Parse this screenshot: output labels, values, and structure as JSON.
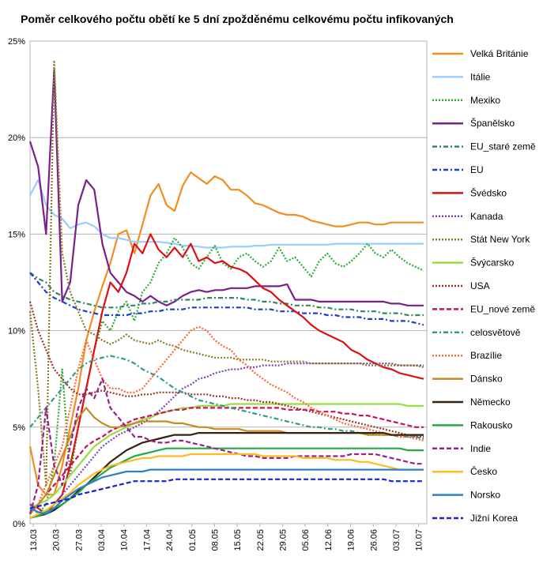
{
  "chart_data": {
    "type": "line",
    "title": "Poměr celkového počtu obětí ke 5 dní zpožděnému celkovému počtu infikovaných",
    "xlabel": "",
    "ylabel": "",
    "ylim": [
      0,
      25
    ],
    "yticks": [
      "0%",
      "5%",
      "10%",
      "15%",
      "20%",
      "25%"
    ],
    "x_tick_labels": [
      "13.03",
      "20.03",
      "27.03",
      "03.04",
      "10.04",
      "17.04",
      "24.04",
      "01.05",
      "08.05",
      "15.05",
      "22.05",
      "29.05",
      "05.06",
      "12.06",
      "19.06",
      "26.06",
      "03.07",
      "10.07"
    ],
    "grid": true,
    "legend_position": "right",
    "series": [
      {
        "name": "Velká Británie",
        "color": "#f58c1e",
        "dash": "solid",
        "values": [
          4,
          2,
          1.5,
          1.5,
          3,
          5,
          7,
          9.5,
          11,
          12.3,
          13.5,
          15,
          15.2,
          14,
          15.5,
          17,
          17.6,
          16.5,
          16.2,
          17.5,
          18.2,
          17.9,
          17.6,
          18,
          17.8,
          17.3,
          17.3,
          17,
          16.6,
          16.5,
          16.3,
          16.1,
          16,
          16,
          15.9,
          15.7,
          15.6,
          15.5,
          15.4,
          15.4,
          15.5,
          15.6,
          15.6,
          15.5,
          15.5,
          15.6,
          15.6,
          15.6,
          15.6,
          15.6
        ]
      },
      {
        "name": "Itálie",
        "color": "#99ccff",
        "dash": "solid",
        "values": [
          17,
          17.8,
          16.5,
          16,
          15.8,
          15.3,
          15.5,
          15.6,
          15.4,
          15,
          14.8,
          14.8,
          14.7,
          14.6,
          14.6,
          14.6,
          14.6,
          14.55,
          14.5,
          14.4,
          14.4,
          14.35,
          14.3,
          14.3,
          14.3,
          14.35,
          14.35,
          14.35,
          14.4,
          14.4,
          14.45,
          14.45,
          14.45,
          14.45,
          14.45,
          14.45,
          14.45,
          14.45,
          14.5,
          14.5,
          14.5,
          14.5,
          14.5,
          14.5,
          14.5,
          14.5,
          14.5,
          14.5,
          14.5,
          14.5
        ]
      },
      {
        "name": "Mexiko",
        "color": "#33aa33",
        "dash": "dot",
        "values": [
          1,
          0.5,
          1,
          3,
          8,
          2.5,
          5,
          7,
          9,
          10.5,
          10,
          11,
          11.5,
          10.5,
          12,
          12.5,
          13.5,
          14,
          14.8,
          14.3,
          13.5,
          13.2,
          13.8,
          14.4,
          13.5,
          13.2,
          13.8,
          14,
          13.6,
          13.3,
          13.6,
          14.3,
          13.6,
          13.8,
          13.3,
          12.8,
          13.6,
          14,
          13.5,
          13.3,
          13.6,
          14,
          14.5,
          14,
          13.8,
          14.2,
          13.8,
          13.5,
          13.3,
          13.1
        ]
      },
      {
        "name": "Španělsko",
        "color": "#7a1f8c",
        "dash": "solid",
        "values": [
          19.8,
          18.5,
          15,
          23.5,
          11.5,
          12.5,
          16.5,
          17.8,
          17.3,
          14.5,
          13,
          12.5,
          12,
          11.8,
          11.5,
          11.8,
          11.5,
          11.3,
          11.5,
          11.8,
          12,
          12.1,
          12,
          12.1,
          12.1,
          12.2,
          12.2,
          12.2,
          12.3,
          12.3,
          12.3,
          12.3,
          12.4,
          11.6,
          11.6,
          11.6,
          11.5,
          11.5,
          11.5,
          11.5,
          11.5,
          11.5,
          11.5,
          11.5,
          11.5,
          11.4,
          11.4,
          11.3,
          11.3,
          11.3
        ]
      },
      {
        "name": "EU_staré země",
        "color": "#2e8a5e",
        "dash": "dashdot",
        "values": [
          13,
          12.7,
          12.5,
          12,
          11.8,
          11.6,
          11.5,
          11.4,
          11.3,
          11.2,
          11.2,
          11.2,
          11.3,
          11.3,
          11.4,
          11.4,
          11.5,
          11.5,
          11.6,
          11.6,
          11.6,
          11.6,
          11.7,
          11.7,
          11.7,
          11.7,
          11.7,
          11.6,
          11.6,
          11.5,
          11.5,
          11.4,
          11.4,
          11.3,
          11.3,
          11.3,
          11.2,
          11.2,
          11.1,
          11.1,
          11.1,
          11,
          11,
          11,
          10.9,
          10.9,
          10.9,
          10.8,
          10.8,
          10.8
        ]
      },
      {
        "name": "EU",
        "color": "#1a3fcc",
        "dash": "dashdot",
        "values": [
          13,
          12.5,
          12,
          11.7,
          11.5,
          11.3,
          11.1,
          11,
          10.9,
          10.8,
          10.8,
          10.8,
          10.8,
          10.9,
          10.9,
          11,
          11,
          11.1,
          11.1,
          11.1,
          11.2,
          11.2,
          11.2,
          11.2,
          11.2,
          11.2,
          11.2,
          11.2,
          11.1,
          11.1,
          11.1,
          11,
          11,
          11,
          10.9,
          10.9,
          10.9,
          10.8,
          10.8,
          10.7,
          10.7,
          10.7,
          10.6,
          10.6,
          10.6,
          10.5,
          10.5,
          10.5,
          10.4,
          10.3
        ]
      },
      {
        "name": "Švédsko",
        "color": "#dd1111",
        "dash": "solid",
        "values": [
          1,
          0.8,
          0.5,
          1,
          1.5,
          3,
          5,
          7,
          9,
          11,
          12.5,
          12,
          13,
          14.5,
          14,
          15,
          14.2,
          13.8,
          14.3,
          13.8,
          14.5,
          13.6,
          13.8,
          13.5,
          13.6,
          13.3,
          13.2,
          13,
          12.6,
          12.2,
          12,
          11.6,
          11.3,
          11,
          10.7,
          10.3,
          10,
          9.8,
          9.6,
          9.4,
          9,
          8.8,
          8.5,
          8.3,
          8.1,
          8,
          7.8,
          7.7,
          7.6,
          7.5
        ]
      },
      {
        "name": "Kanada",
        "color": "#7a44b2",
        "dash": "dot",
        "values": [
          1,
          0.8,
          0.5,
          1,
          1.5,
          2,
          2.5,
          3,
          3.5,
          4,
          4.3,
          4.6,
          4.8,
          5,
          5.2,
          5.5,
          5.8,
          6.2,
          6.6,
          7,
          7.2,
          7.5,
          7.6,
          7.8,
          7.9,
          8,
          8,
          8.1,
          8.1,
          8.2,
          8.2,
          8.2,
          8.3,
          8.3,
          8.3,
          8.3,
          8.3,
          8.3,
          8.3,
          8.3,
          8.3,
          8.3,
          8.3,
          8.3,
          8.3,
          8.3,
          8.2,
          8.2,
          8.2,
          8.2
        ]
      },
      {
        "name": "Stát New York",
        "color": "#8a7a22",
        "dash": "dot",
        "values": [
          11,
          7,
          2,
          24,
          14,
          12,
          11,
          10,
          9.8,
          9.5,
          9.3,
          9.5,
          9.8,
          9.5,
          9.4,
          9.3,
          9.5,
          9.3,
          9.2,
          9,
          8.9,
          8.8,
          8.7,
          8.6,
          8.6,
          8.6,
          8.5,
          8.5,
          8.5,
          8.5,
          8.4,
          8.4,
          8.4,
          8.4,
          8.4,
          8.3,
          8.3,
          8.3,
          8.3,
          8.3,
          8.3,
          8.3,
          8.2,
          8.2,
          8.2,
          8.2,
          8.2,
          8.2,
          8.2,
          8.1
        ]
      },
      {
        "name": "Švýcarsko",
        "color": "#99dd44",
        "dash": "solid",
        "values": [
          0.8,
          1,
          1.2,
          1.5,
          2,
          2.5,
          3,
          3.5,
          4,
          4.3,
          4.6,
          4.8,
          5,
          5.2,
          5.4,
          5.5,
          5.7,
          5.8,
          5.9,
          6,
          6,
          6.1,
          6.1,
          6.1,
          6.1,
          6.2,
          6.2,
          6.2,
          6.2,
          6.2,
          6.2,
          6.2,
          6.2,
          6.2,
          6.2,
          6.2,
          6.2,
          6.2,
          6.2,
          6.2,
          6.2,
          6.2,
          6.2,
          6.2,
          6.2,
          6.2,
          6.2,
          6.1,
          6.1,
          6.1
        ]
      },
      {
        "name": "USA",
        "color": "#993322",
        "dash": "dot",
        "values": [
          11.5,
          10,
          9,
          8,
          7.5,
          7,
          6.7,
          6.7,
          6.8,
          6.9,
          6.8,
          6.7,
          6.6,
          6.6,
          6.7,
          6.7,
          6.8,
          6.8,
          6.8,
          6.8,
          6.7,
          6.7,
          6.7,
          6.6,
          6.6,
          6.5,
          6.5,
          6.4,
          6.4,
          6.3,
          6.3,
          6.2,
          6.1,
          6,
          5.9,
          5.8,
          5.7,
          5.6,
          5.5,
          5.4,
          5.3,
          5.2,
          5.1,
          5,
          4.9,
          4.8,
          4.7,
          4.6,
          4.5,
          4.5
        ]
      },
      {
        "name": "EU_nové země",
        "color": "#cc1155",
        "dash": "dash",
        "values": [
          0.5,
          1,
          1.5,
          2,
          2.5,
          3,
          3.5,
          4,
          4.3,
          4.5,
          4.8,
          5,
          5.2,
          5.4,
          5.5,
          5.6,
          5.7,
          5.8,
          5.9,
          5.9,
          6,
          6,
          6,
          6,
          6,
          6,
          6,
          6,
          6,
          6,
          6,
          6,
          5.9,
          5.9,
          5.9,
          5.9,
          5.8,
          5.8,
          5.8,
          5.7,
          5.7,
          5.6,
          5.6,
          5.5,
          5.4,
          5.3,
          5.2,
          5.1,
          5,
          5
        ]
      },
      {
        "name": "celosvětově",
        "color": "#339988",
        "dash": "dashdot",
        "values": [
          5,
          5.5,
          6,
          6.5,
          7,
          7.5,
          8,
          8.3,
          8.5,
          8.6,
          8.7,
          8.6,
          8.5,
          8.3,
          8,
          7.8,
          7.6,
          7.3,
          7,
          6.8,
          6.6,
          6.4,
          6.3,
          6.2,
          6.1,
          6,
          5.9,
          5.8,
          5.7,
          5.6,
          5.5,
          5.4,
          5.3,
          5.2,
          5.1,
          5,
          5,
          4.9,
          4.9,
          4.8,
          4.8,
          4.7,
          4.7,
          4.6,
          4.6,
          4.6,
          4.5,
          4.5,
          4.5,
          4.4
        ]
      },
      {
        "name": "Brazílie",
        "color": "#ff6633",
        "dash": "dot",
        "values": [
          0.5,
          1,
          2,
          3,
          4,
          6,
          8,
          9.5,
          8.5,
          7.5,
          7,
          7,
          6.8,
          6.8,
          7,
          7.5,
          8,
          8.5,
          9,
          9.5,
          10,
          10.2,
          10,
          9.5,
          9.2,
          9,
          8.5,
          8.2,
          7.8,
          7.5,
          7.2,
          7,
          6.8,
          6.5,
          6.3,
          6,
          5.8,
          5.6,
          5.4,
          5.2,
          5.1,
          5,
          4.9,
          4.8,
          4.7,
          4.6,
          4.5,
          4.5,
          4.4,
          4.3
        ]
      },
      {
        "name": "Dánsko",
        "color": "#c78a22",
        "dash": "solid",
        "values": [
          0.5,
          1,
          1.5,
          2.5,
          3.5,
          4.5,
          5.5,
          6,
          5.5,
          5.2,
          5,
          5,
          5.1,
          5.2,
          5.3,
          5.3,
          5.3,
          5.3,
          5.2,
          5.2,
          5.1,
          5,
          5,
          4.9,
          4.9,
          4.9,
          4.9,
          4.8,
          4.8,
          4.8,
          4.8,
          4.8,
          4.7,
          4.7,
          4.7,
          4.7,
          4.7,
          4.7,
          4.7,
          4.7,
          4.7,
          4.7,
          4.6,
          4.6,
          4.6,
          4.6,
          4.6,
          4.6,
          4.6,
          4.6
        ]
      },
      {
        "name": "Německo",
        "color": "#332211",
        "dash": "solid",
        "values": [
          0.3,
          0.4,
          0.5,
          0.7,
          1,
          1.3,
          1.7,
          2,
          2.4,
          2.8,
          3.2,
          3.5,
          3.8,
          4,
          4.2,
          4.3,
          4.4,
          4.5,
          4.6,
          4.6,
          4.6,
          4.7,
          4.7,
          4.7,
          4.7,
          4.7,
          4.7,
          4.7,
          4.7,
          4.7,
          4.7,
          4.7,
          4.7,
          4.7,
          4.7,
          4.7,
          4.7,
          4.7,
          4.7,
          4.7,
          4.7,
          4.7,
          4.7,
          4.7,
          4.7,
          4.6,
          4.6,
          4.6,
          4.6,
          4.6
        ]
      },
      {
        "name": "Rakousko",
        "color": "#22aa44",
        "dash": "solid",
        "values": [
          0.3,
          0.4,
          0.6,
          0.8,
          1,
          1.3,
          1.6,
          2,
          2.3,
          2.6,
          2.9,
          3.1,
          3.3,
          3.5,
          3.6,
          3.7,
          3.8,
          3.9,
          3.9,
          3.9,
          3.9,
          3.9,
          3.9,
          3.9,
          3.9,
          3.9,
          3.9,
          3.9,
          3.9,
          3.9,
          3.9,
          3.9,
          3.9,
          3.9,
          3.9,
          3.9,
          3.9,
          3.9,
          3.9,
          3.9,
          3.9,
          3.9,
          3.9,
          3.9,
          3.9,
          3.9,
          3.9,
          3.8,
          3.8,
          3.8
        ]
      },
      {
        "name": "Indie",
        "color": "#992288",
        "dash": "dash",
        "values": [
          0.5,
          2,
          6,
          3,
          2,
          4,
          6,
          7,
          6.5,
          7.5,
          6,
          5.5,
          5,
          4.5,
          4.5,
          4.3,
          4.2,
          4.2,
          4.3,
          4.3,
          4.2,
          4.1,
          4,
          3.9,
          3.8,
          3.7,
          3.6,
          3.5,
          3.5,
          3.4,
          3.4,
          3.4,
          3.4,
          3.5,
          3.5,
          3.5,
          3.5,
          3.5,
          3.5,
          3.5,
          3.6,
          3.6,
          3.6,
          3.6,
          3.5,
          3.4,
          3.3,
          3.2,
          3.1,
          3.1
        ]
      },
      {
        "name": "Česko",
        "color": "#ffbb22",
        "dash": "solid",
        "values": [
          0.3,
          0.5,
          0.7,
          1,
          1.3,
          1.6,
          2,
          2.3,
          2.6,
          2.8,
          3,
          3.1,
          3.2,
          3.3,
          3.4,
          3.4,
          3.5,
          3.5,
          3.5,
          3.5,
          3.6,
          3.6,
          3.6,
          3.6,
          3.6,
          3.6,
          3.6,
          3.6,
          3.6,
          3.5,
          3.5,
          3.5,
          3.5,
          3.5,
          3.4,
          3.4,
          3.4,
          3.4,
          3.3,
          3.3,
          3.3,
          3.2,
          3.2,
          3.1,
          3,
          2.9,
          2.8,
          2.8,
          2.8,
          2.8
        ]
      },
      {
        "name": "Norsko",
        "color": "#2b7fcc",
        "dash": "solid",
        "values": [
          0.8,
          0.6,
          0.5,
          0.8,
          1.2,
          1.5,
          1.8,
          2,
          2.2,
          2.4,
          2.5,
          2.6,
          2.7,
          2.7,
          2.7,
          2.8,
          2.8,
          2.8,
          2.8,
          2.8,
          2.8,
          2.8,
          2.8,
          2.8,
          2.8,
          2.8,
          2.8,
          2.8,
          2.8,
          2.8,
          2.8,
          2.8,
          2.8,
          2.8,
          2.8,
          2.8,
          2.8,
          2.8,
          2.8,
          2.8,
          2.8,
          2.8,
          2.8,
          2.8,
          2.8,
          2.8,
          2.8,
          2.8,
          2.8,
          2.8
        ]
      },
      {
        "name": "Jižní Korea",
        "color": "#1a22cc",
        "dash": "dash",
        "values": [
          0.8,
          0.9,
          1,
          1.1,
          1.2,
          1.3,
          1.5,
          1.6,
          1.7,
          1.8,
          1.9,
          2,
          2.1,
          2.2,
          2.2,
          2.2,
          2.2,
          2.2,
          2.3,
          2.3,
          2.3,
          2.3,
          2.3,
          2.3,
          2.3,
          2.3,
          2.3,
          2.3,
          2.3,
          2.3,
          2.3,
          2.3,
          2.3,
          2.3,
          2.3,
          2.3,
          2.3,
          2.3,
          2.3,
          2.3,
          2.3,
          2.3,
          2.3,
          2.3,
          2.3,
          2.2,
          2.2,
          2.2,
          2.2,
          2.2
        ]
      }
    ]
  }
}
